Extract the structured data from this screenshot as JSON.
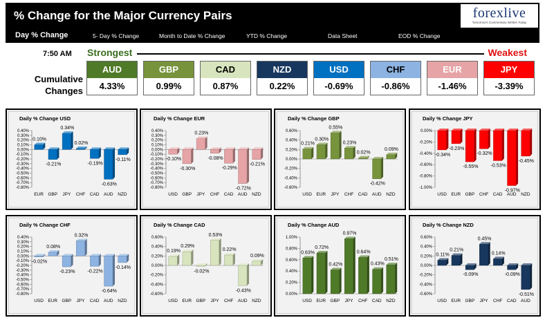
{
  "header": {
    "title": "% Change for the Major Currency Pairs",
    "logo": "forexlive",
    "tagline": "Tomorrow's Commentary Written Today"
  },
  "nav": {
    "tabs": [
      "Day % Change",
      "5- Day % Change",
      "Month to Date % Change",
      "YTD % Change",
      "Data Sheet",
      "EOD % Change"
    ]
  },
  "summary": {
    "time": "7:50 AM",
    "strongest": "Strongest",
    "weakest": "Weakest",
    "row_label_1": "Cumulative",
    "row_label_2": "Changes",
    "cells": [
      {
        "currency": "AUD",
        "value": "4.33%",
        "bg": "#4f7a28",
        "fg": "#ffffff"
      },
      {
        "currency": "GBP",
        "value": "0.99%",
        "bg": "#77933c",
        "fg": "#ffffff"
      },
      {
        "currency": "CAD",
        "value": "0.87%",
        "bg": "#d7e4bd",
        "fg": "#000000"
      },
      {
        "currency": "NZD",
        "value": "0.22%",
        "bg": "#17375e",
        "fg": "#ffffff"
      },
      {
        "currency": "USD",
        "value": "-0.69%",
        "bg": "#0070c0",
        "fg": "#ffffff"
      },
      {
        "currency": "CHF",
        "value": "-0.86%",
        "bg": "#8db3e2",
        "fg": "#000000"
      },
      {
        "currency": "EUR",
        "value": "-1.46%",
        "bg": "#e6a4a6",
        "fg": "#ffffff"
      },
      {
        "currency": "JPY",
        "value": "-3.39%",
        "bg": "#ff0000",
        "fg": "#ffffff"
      }
    ]
  },
  "chart_data": [
    {
      "type": "bar",
      "title": "Daily % Change USD",
      "categories": [
        "EUR",
        "GBP",
        "JPY",
        "CHF",
        "CAD",
        "AUD",
        "NZD"
      ],
      "values": [
        0.1,
        -0.21,
        0.34,
        0.02,
        -0.19,
        -0.63,
        -0.11
      ],
      "labels": [
        "0.10%",
        "-0.21%",
        "0.34%",
        "0.02%",
        "-0.19%",
        "-0.63%",
        "-0.11%"
      ],
      "ylim": [
        -0.8,
        0.4
      ],
      "yticks": [
        0.4,
        0.3,
        0.2,
        0.1,
        0,
        -0.1,
        -0.2,
        -0.3,
        -0.4,
        -0.5,
        -0.6,
        -0.7,
        -0.8
      ],
      "ytick_labels": [
        "0.40%",
        "0.30%",
        "0.20%",
        "0.10%",
        "0.00%",
        "-0.10%",
        "-0.20%",
        "-0.30%",
        "-0.40%",
        "-0.50%",
        "-0.60%",
        "-0.70%",
        "-0.80%"
      ],
      "color": "#0070c0",
      "grid": false
    },
    {
      "type": "bar",
      "title": "Daily % Change EUR",
      "categories": [
        "USD",
        "GBP",
        "JPY",
        "CHF",
        "CAD",
        "AUD",
        "NZD"
      ],
      "values": [
        -0.1,
        -0.3,
        0.23,
        -0.08,
        -0.29,
        -0.72,
        -0.21
      ],
      "labels": [
        "-0.10%",
        "-0.30%",
        "0.23%",
        "-0.08%",
        "-0.29%",
        "-0.72%",
        "-0.21%"
      ],
      "ylim": [
        -0.8,
        0.4
      ],
      "yticks": [
        0.4,
        0.3,
        0.2,
        0.1,
        0,
        -0.1,
        -0.2,
        -0.3,
        -0.4,
        -0.5,
        -0.6,
        -0.7,
        -0.8
      ],
      "ytick_labels": [
        "0.40%",
        "0.30%",
        "0.20%",
        "0.10%",
        "0.00%",
        "-0.10%",
        "-0.20%",
        "-0.30%",
        "-0.40%",
        "-0.50%",
        "-0.60%",
        "-0.70%",
        "-0.80%"
      ],
      "color": "#e6a4a6",
      "grid": false
    },
    {
      "type": "bar",
      "title": "Daily % Change GBP",
      "categories": [
        "USD",
        "EUR",
        "JPY",
        "CHF",
        "CAD",
        "AUD",
        "NZD"
      ],
      "values": [
        0.21,
        0.3,
        0.55,
        0.23,
        0.02,
        -0.42,
        0.09
      ],
      "labels": [
        "0.21%",
        "0.30%",
        "0.55%",
        "0.23%",
        "0.02%",
        "-0.42%",
        "0.09%"
      ],
      "ylim": [
        -0.6,
        0.6
      ],
      "yticks": [
        0.6,
        0.4,
        0.2,
        0,
        -0.2,
        -0.4,
        -0.6
      ],
      "ytick_labels": [
        "0.60%",
        "0.40%",
        "0.20%",
        "0.00%",
        "-0.20%",
        "-0.40%",
        "-0.60%"
      ],
      "color": "#77933c",
      "grid": false
    },
    {
      "type": "bar",
      "title": "Daily % Change JPY",
      "categories": [
        "USD",
        "EUR",
        "GBP",
        "CHF",
        "CAD",
        "AUD",
        "NZD"
      ],
      "values": [
        -0.34,
        -0.23,
        -0.55,
        -0.32,
        -0.53,
        -0.97,
        -0.45
      ],
      "labels": [
        "-0.34%",
        "-0.23%",
        "-0.55%",
        "-0.32%",
        "-0.53%",
        "-0.97%",
        "-0.45%"
      ],
      "ylim": [
        -1.0,
        0
      ],
      "yticks": [
        0,
        -0.2,
        -0.4,
        -0.6,
        -0.8,
        -1.0
      ],
      "ytick_labels": [
        "0.00%",
        "-0.20%",
        "-0.40%",
        "-0.60%",
        "-0.80%",
        "-1.00%"
      ],
      "color": "#ff0000",
      "grid": false
    },
    {
      "type": "bar",
      "title": "Daily % Change CHF",
      "categories": [
        "USD",
        "EUR",
        "GBP",
        "JPY",
        "CAD",
        "AUD",
        "NZD"
      ],
      "values": [
        -0.02,
        0.08,
        -0.23,
        0.32,
        -0.22,
        -0.64,
        -0.14
      ],
      "labels": [
        "-0.02%",
        "0.08%",
        "-0.23%",
        "0.32%",
        "-0.22%",
        "-0.64%",
        "-0.14%"
      ],
      "ylim": [
        -0.8,
        0.4
      ],
      "yticks": [
        0.4,
        0.3,
        0.2,
        0.1,
        0,
        -0.1,
        -0.2,
        -0.3,
        -0.4,
        -0.5,
        -0.6,
        -0.7,
        -0.8
      ],
      "ytick_labels": [
        "0.40%",
        "0.30%",
        "0.20%",
        "0.10%",
        "0.00%",
        "-0.10%",
        "-0.20%",
        "-0.30%",
        "-0.40%",
        "-0.50%",
        "-0.60%",
        "-0.70%",
        "-0.80%"
      ],
      "color": "#8db3e2",
      "grid": false
    },
    {
      "type": "bar",
      "title": "Daily % Change CAD",
      "categories": [
        "USD",
        "EUR",
        "GBP",
        "JPY",
        "CHF",
        "AUD",
        "NZD"
      ],
      "values": [
        0.19,
        0.29,
        -0.02,
        0.53,
        0.22,
        -0.43,
        0.09
      ],
      "labels": [
        "0.19%",
        "0.29%",
        "-0.02%",
        "0.53%",
        "0.22%",
        "-0.43%",
        "0.09%"
      ],
      "ylim": [
        -0.6,
        0.6
      ],
      "yticks": [
        0.6,
        0.4,
        0.2,
        0,
        -0.2,
        -0.4,
        -0.6
      ],
      "ytick_labels": [
        "0.60%",
        "0.40%",
        "0.20%",
        "0.00%",
        "-0.20%",
        "-0.40%",
        "-0.60%"
      ],
      "color": "#d7e4bd",
      "grid": false
    },
    {
      "type": "bar",
      "title": "Daily % Change AUD",
      "categories": [
        "USD",
        "EUR",
        "GBP",
        "JPY",
        "CHF",
        "CAD",
        "NZD"
      ],
      "values": [
        0.63,
        0.72,
        0.42,
        0.97,
        0.64,
        0.43,
        0.51
      ],
      "labels": [
        "0.63%",
        "0.72%",
        "0.42%",
        "0.97%",
        "0.64%",
        "0.43%",
        "0.51%"
      ],
      "ylim": [
        0,
        1.0
      ],
      "yticks": [
        1.0,
        0.8,
        0.6,
        0.4,
        0.2,
        0
      ],
      "ytick_labels": [
        "1.00%",
        "0.80%",
        "0.60%",
        "0.40%",
        "0.20%",
        "0.00%"
      ],
      "color": "#4f7a28",
      "grid": false
    },
    {
      "type": "bar",
      "title": "Daily % Change NZD",
      "categories": [
        "USD",
        "EUR",
        "GBP",
        "JPY",
        "CHF",
        "CAD",
        "AUD"
      ],
      "values": [
        0.11,
        0.21,
        -0.09,
        0.45,
        0.14,
        -0.09,
        -0.51
      ],
      "labels": [
        "0.11%",
        "0.21%",
        "-0.09%",
        "0.45%",
        "0.14%",
        "-0.09%",
        "-0.51%"
      ],
      "ylim": [
        -0.6,
        0.6
      ],
      "yticks": [
        0.6,
        0.4,
        0.2,
        0,
        -0.2,
        -0.4,
        -0.6
      ],
      "ytick_labels": [
        "0.60%",
        "0.40%",
        "0.20%",
        "0.00%",
        "-0.20%",
        "-0.40%",
        "-0.60%"
      ],
      "color": "#17375e",
      "grid": false
    }
  ]
}
